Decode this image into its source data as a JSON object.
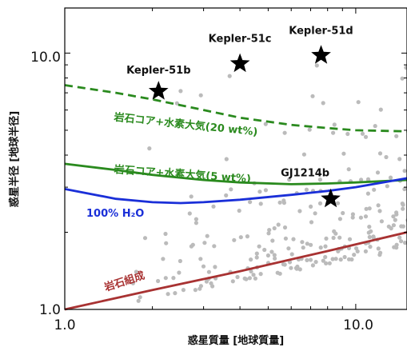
{
  "chart_data": {
    "type": "scatter",
    "x_scale": "log",
    "y_scale": "log",
    "xlim": [
      1.0,
      15.0
    ],
    "ylim": [
      1.0,
      15.0
    ],
    "xlabel": "惑星質量 [地球質量]",
    "ylabel": "惑星半径 [地球半径]",
    "x_ticks": [
      {
        "value": 1.0,
        "label": "1.0"
      },
      {
        "value": 10.0,
        "label": "10.0"
      }
    ],
    "y_ticks": [
      {
        "value": 1.0,
        "label": "1.0"
      },
      {
        "value": 10.0,
        "label": "10.0"
      }
    ],
    "grid": false,
    "highlighted_planets": [
      {
        "name": "Kepler-51b",
        "mass": 2.1,
        "radius": 7.1
      },
      {
        "name": "Kepler-51c",
        "mass": 4.0,
        "radius": 9.1
      },
      {
        "name": "Kepler-51d",
        "mass": 7.6,
        "radius": 9.8
      },
      {
        "name": "GJ1214b",
        "mass": 8.2,
        "radius": 2.7
      }
    ],
    "composition_curves": [
      {
        "label": "岩石コア+水素大気(20 wt%)",
        "color": "#2a8a1e",
        "style": "dashed",
        "points": [
          [
            1.0,
            7.5
          ],
          [
            1.5,
            7.0
          ],
          [
            2.0,
            6.6
          ],
          [
            3.0,
            6.0
          ],
          [
            4.0,
            5.6
          ],
          [
            6.0,
            5.25
          ],
          [
            8.0,
            5.1
          ],
          [
            10.0,
            5.0
          ],
          [
            15.0,
            4.95
          ]
        ]
      },
      {
        "label": "岩石コア+水素大気(5 wt%)",
        "color": "#2a8a1e",
        "style": "solid",
        "points": [
          [
            1.0,
            3.7
          ],
          [
            1.5,
            3.5
          ],
          [
            2.0,
            3.35
          ],
          [
            3.0,
            3.2
          ],
          [
            4.0,
            3.13
          ],
          [
            6.0,
            3.08
          ],
          [
            8.0,
            3.1
          ],
          [
            10.0,
            3.13
          ],
          [
            15.0,
            3.2
          ]
        ]
      },
      {
        "label": "100% H₂O",
        "color": "#1a2fd8",
        "style": "solid",
        "points": [
          [
            1.0,
            2.95
          ],
          [
            1.5,
            2.7
          ],
          [
            2.0,
            2.62
          ],
          [
            2.5,
            2.6
          ],
          [
            3.0,
            2.62
          ],
          [
            4.0,
            2.68
          ],
          [
            6.0,
            2.8
          ],
          [
            8.0,
            2.9
          ],
          [
            10.0,
            3.0
          ],
          [
            15.0,
            3.25
          ]
        ]
      },
      {
        "label": "岩石組成",
        "color": "#a83232",
        "style": "solid",
        "points": [
          [
            1.0,
            1.0
          ],
          [
            2.0,
            1.19
          ],
          [
            4.0,
            1.41
          ],
          [
            8.0,
            1.69
          ],
          [
            15.0,
            2.0
          ]
        ]
      }
    ],
    "observed_planets_color": "#bbbbbb"
  }
}
